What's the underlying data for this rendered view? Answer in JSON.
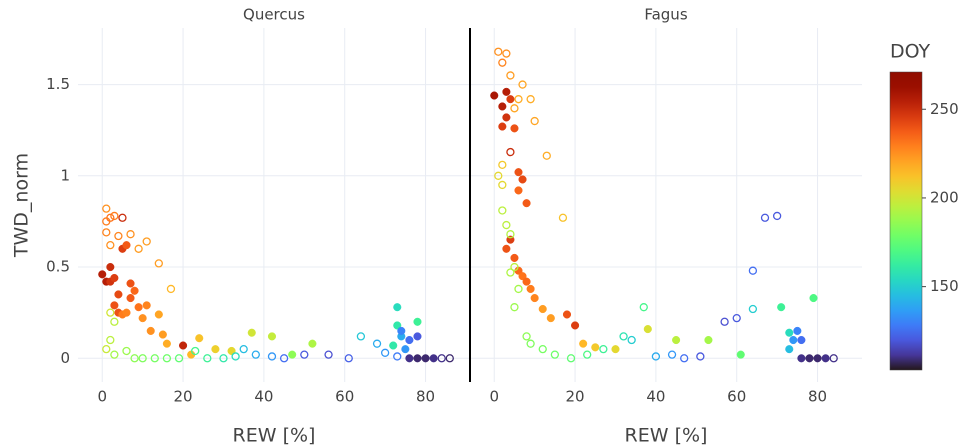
{
  "chart_data": {
    "type": "scatter",
    "y_label": "TWD_norm",
    "ylim": [
      -0.13,
      1.81
    ],
    "yticks": [
      0,
      0.5,
      1,
      1.5
    ],
    "grid": true,
    "colorbar": {
      "title": "DOY",
      "colorscale": "Turbo",
      "lim": [
        103,
        271
      ],
      "ticks": [
        150,
        200,
        250
      ]
    },
    "panels": [
      {
        "title": "Quercus",
        "x_label": "REW [%]",
        "xlim": [
          -6,
          91
        ],
        "xticks": [
          0,
          20,
          40,
          60,
          80
        ],
        "series": [
          {
            "marker": "filled",
            "x": [
              0,
              1,
              2,
              2,
              3,
              3,
              4,
              5,
              6,
              7,
              8,
              7,
              9,
              4,
              5,
              6,
              10,
              11,
              12,
              14,
              15,
              16,
              20,
              22,
              24,
              28,
              32,
              37,
              42,
              47,
              52,
              72,
              73,
              73,
              74,
              75,
              74,
              76,
              78,
              78,
              76,
              78,
              80,
              82
            ],
            "y": [
              0.46,
              0.42,
              0.5,
              0.42,
              0.44,
              0.29,
              0.35,
              0.6,
              0.62,
              0.41,
              0.37,
              0.33,
              0.28,
              0.25,
              0.24,
              0.25,
              0.22,
              0.29,
              0.15,
              0.24,
              0.13,
              0.08,
              0.07,
              0.02,
              0.11,
              0.05,
              0.04,
              0.14,
              0.12,
              0.02,
              0.08,
              0.07,
              0.28,
              0.18,
              0.12,
              0.05,
              0.15,
              0.1,
              0.12,
              0.2,
              0,
              0,
              0,
              0
            ],
            "doy": [
              255,
              255,
              250,
              248,
              245,
              240,
              242,
              245,
              238,
              240,
              235,
              238,
              232,
              240,
              230,
              228,
              225,
              228,
              225,
              220,
              222,
              218,
              252,
              215,
              212,
              208,
              205,
              200,
              197,
              185,
              192,
              160,
              155,
              160,
              140,
              135,
              130,
              125,
              120,
              165,
              110,
              108,
              108,
              110
            ]
          },
          {
            "marker": "open",
            "x": [
              1,
              2,
              1,
              1,
              2,
              3,
              4,
              5,
              7,
              9,
              11,
              14,
              17,
              2,
              3,
              2,
              1,
              3,
              6,
              8,
              10,
              13,
              16,
              19,
              23,
              26,
              30,
              33,
              35,
              38,
              42,
              45,
              50,
              56,
              61,
              64,
              68,
              70,
              73,
              84,
              86
            ],
            "y": [
              0.82,
              0.77,
              0.75,
              0.69,
              0.62,
              0.78,
              0.67,
              0.77,
              0.68,
              0.6,
              0.64,
              0.52,
              0.38,
              0.25,
              0.2,
              0.1,
              0.05,
              0.02,
              0.04,
              0,
              0,
              0,
              0,
              0,
              0.04,
              0,
              0,
              0.01,
              0.05,
              0.02,
              0.01,
              0,
              0.02,
              0.02,
              0,
              0.12,
              0.08,
              0.03,
              0.01,
              0,
              0
            ],
            "doy": [
              225,
              232,
              230,
              228,
              225,
              230,
              228,
              250,
              225,
              222,
              222,
              222,
              215,
              200,
              195,
              195,
              198,
              190,
              188,
              185,
              182,
              180,
              178,
              175,
              168,
              165,
              160,
              155,
              145,
              140,
              135,
              125,
              120,
              118,
              122,
              148,
              140,
              135,
              128,
              110,
              108
            ]
          }
        ]
      },
      {
        "title": "Fagus",
        "x_label": "REW [%]",
        "xlim": [
          -6,
          91
        ],
        "xticks": [
          0,
          20,
          40,
          60,
          80
        ],
        "series": [
          {
            "marker": "filled",
            "x": [
              0,
              2,
              3,
              2,
              3,
              5,
              4,
              6,
              7,
              6,
              8,
              3,
              4,
              5,
              6,
              7,
              8,
              9,
              10,
              12,
              14,
              18,
              20,
              22,
              25,
              30,
              38,
              45,
              53,
              61,
              71,
              73,
              73,
              74,
              75,
              76,
              79,
              76,
              78,
              80,
              82
            ],
            "y": [
              1.44,
              1.38,
              1.32,
              1.27,
              1.46,
              1.26,
              1.42,
              1.02,
              0.98,
              0.92,
              0.85,
              0.6,
              0.65,
              0.55,
              0.48,
              0.45,
              0.42,
              0.38,
              0.33,
              0.27,
              0.22,
              0.24,
              0.18,
              0.08,
              0.06,
              0.05,
              0.16,
              0.1,
              0.1,
              0.02,
              0.28,
              0.14,
              0.05,
              0.1,
              0.15,
              0.1,
              0.33,
              0,
              0,
              0,
              0
            ],
            "doy": [
              258,
              255,
              248,
              245,
              255,
              240,
              245,
              240,
              242,
              235,
              238,
              240,
              245,
              238,
              235,
              232,
              235,
              230,
              228,
              222,
              222,
              240,
              245,
              215,
              210,
              205,
              202,
              195,
              190,
              175,
              165,
              155,
              145,
              135,
              130,
              125,
              170,
              110,
              108,
              108,
              110
            ]
          },
          {
            "marker": "open",
            "x": [
              1,
              2,
              3,
              4,
              6,
              7,
              5,
              9,
              10,
              4,
              13,
              17,
              2,
              1,
              2,
              2,
              3,
              4,
              5,
              4,
              6,
              5,
              8,
              9,
              12,
              15,
              19,
              23,
              27,
              32,
              34,
              37,
              40,
              44,
              47,
              51,
              57,
              60,
              64,
              67,
              70,
              64,
              84
            ],
            "y": [
              1.68,
              1.62,
              1.67,
              1.55,
              1.42,
              1.5,
              1.37,
              1.42,
              1.3,
              1.13,
              1.11,
              0.77,
              1.06,
              1.0,
              0.95,
              0.81,
              0.73,
              0.68,
              0.5,
              0.47,
              0.38,
              0.28,
              0.12,
              0.08,
              0.05,
              0.02,
              0,
              0.02,
              0.05,
              0.12,
              0.1,
              0.28,
              0.01,
              0.02,
              0,
              0.01,
              0.2,
              0.22,
              0.48,
              0.77,
              0.78,
              0.27,
              0
            ],
            "doy": [
              225,
              228,
              225,
              222,
              218,
              220,
              220,
              218,
              220,
              250,
              218,
              212,
              210,
              205,
              205,
              195,
              195,
              193,
              195,
              192,
              190,
              188,
              185,
              182,
              180,
              178,
              175,
              170,
              165,
              158,
              150,
              168,
              140,
              135,
              125,
              120,
              118,
              120,
              125,
              120,
              120,
              150,
              110
            ]
          }
        ]
      }
    ]
  }
}
